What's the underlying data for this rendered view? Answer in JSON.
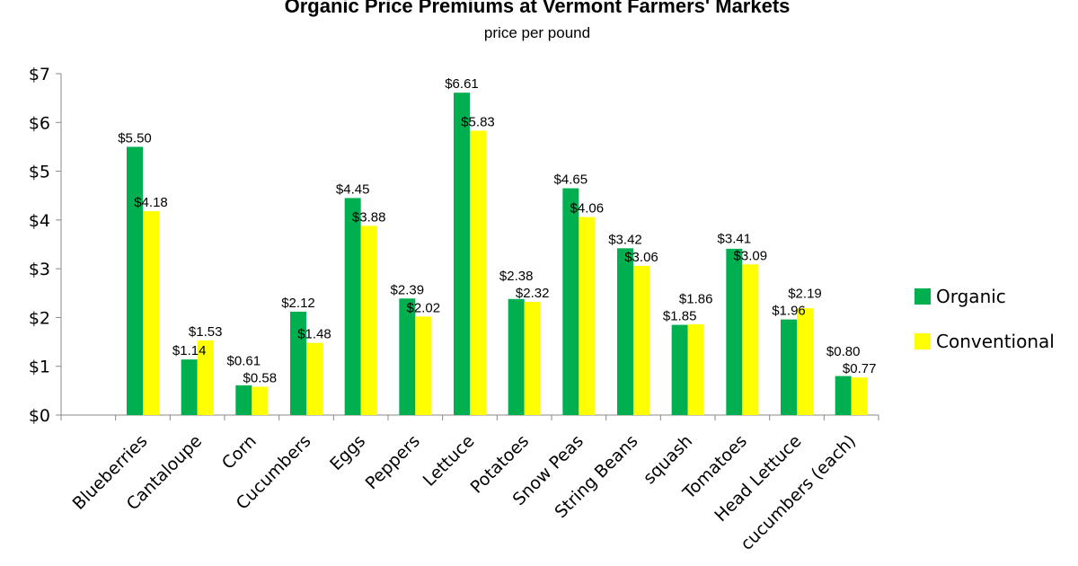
{
  "chart_data": {
    "type": "bar",
    "title": "Organic Price Premiums at Vermont Farmers' Markets",
    "subtitle": "price per pound",
    "xlabel": "",
    "ylabel": "",
    "ylim": [
      0,
      7
    ],
    "yticks": [
      "$0",
      "$1",
      "$2",
      "$3",
      "$4",
      "$5",
      "$6",
      "$7"
    ],
    "grid": false,
    "legend_position": "right",
    "categories": [
      "",
      "Blueberries",
      "Cantaloupe",
      "Corn",
      "Cucumbers",
      "Eggs",
      "Peppers",
      "Lettuce",
      "Potatoes",
      "Snow Peas",
      "String Beans",
      "squash",
      "Tomatoes",
      "Head Lettuce",
      "cucumbers (each)"
    ],
    "series": [
      {
        "name": "Organic",
        "color": "#00b050",
        "values": [
          null,
          5.5,
          1.14,
          0.61,
          2.12,
          4.45,
          2.39,
          6.61,
          2.38,
          4.65,
          3.42,
          1.85,
          3.41,
          1.96,
          0.8
        ],
        "labels": [
          "",
          "$5.50",
          "$1.14",
          "$0.61",
          "$2.12",
          "$4.45",
          "$2.39",
          "$6.61",
          "$2.38",
          "$4.65",
          "$3.42",
          "$1.85",
          "$3.41",
          "$1.96",
          "$0.80"
        ]
      },
      {
        "name": "Conventional",
        "color": "#ffff00",
        "values": [
          null,
          4.18,
          1.53,
          0.58,
          1.48,
          3.88,
          2.02,
          5.83,
          2.32,
          4.06,
          3.06,
          1.86,
          3.09,
          2.19,
          0.77
        ],
        "labels": [
          "",
          "$4.18",
          "$1.53",
          "$0.58",
          "$1.48",
          "$3.88",
          "$2.02",
          "$5.83",
          "$2.32",
          "$4.06",
          "$3.06",
          "$1.86",
          "$3.09",
          "$2.19",
          "$0.77"
        ]
      }
    ]
  }
}
